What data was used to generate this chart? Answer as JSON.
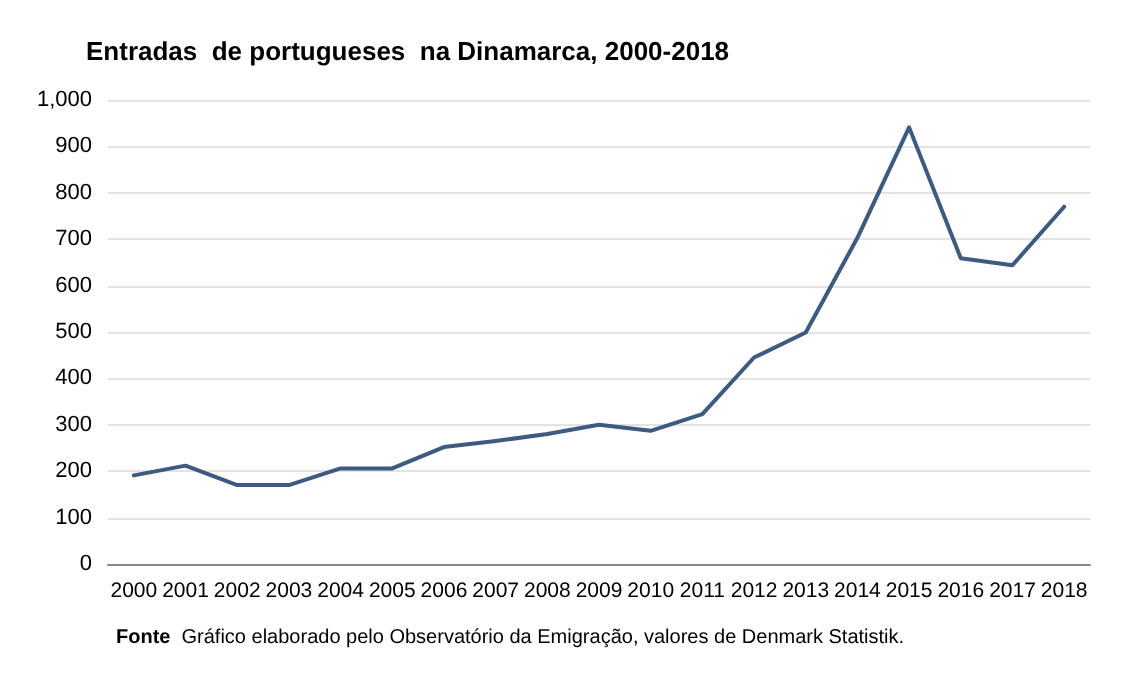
{
  "chart_data": {
    "type": "line",
    "title": "Entradas  de portugueses  na Dinamarca, 2000-2018",
    "categories": [
      "2000",
      "2001",
      "2002",
      "2003",
      "2004",
      "2005",
      "2006",
      "2007",
      "2008",
      "2009",
      "2010",
      "2011",
      "2012",
      "2013",
      "2014",
      "2015",
      "2016",
      "2017",
      "2018"
    ],
    "series": [
      {
        "color": "#3d5a80",
        "values": [
          191,
          212,
          170,
          170,
          206,
          206,
          252,
          265,
          280,
          300,
          287,
          323,
          445,
          499,
          703,
          941,
          659,
          644,
          770
        ]
      }
    ],
    "ylim": [
      0,
      1000
    ],
    "yticks": [
      0,
      100,
      200,
      300,
      400,
      500,
      600,
      700,
      800,
      900,
      {
        "value": 1000,
        "label": "1,000"
      }
    ],
    "grid": "y",
    "marker": "none",
    "line_style": "solid",
    "annotations": [
      "Fonte  Gráfico elaborado pelo Observatório da Emigração, valores de Denmark Statistik."
    ]
  }
}
